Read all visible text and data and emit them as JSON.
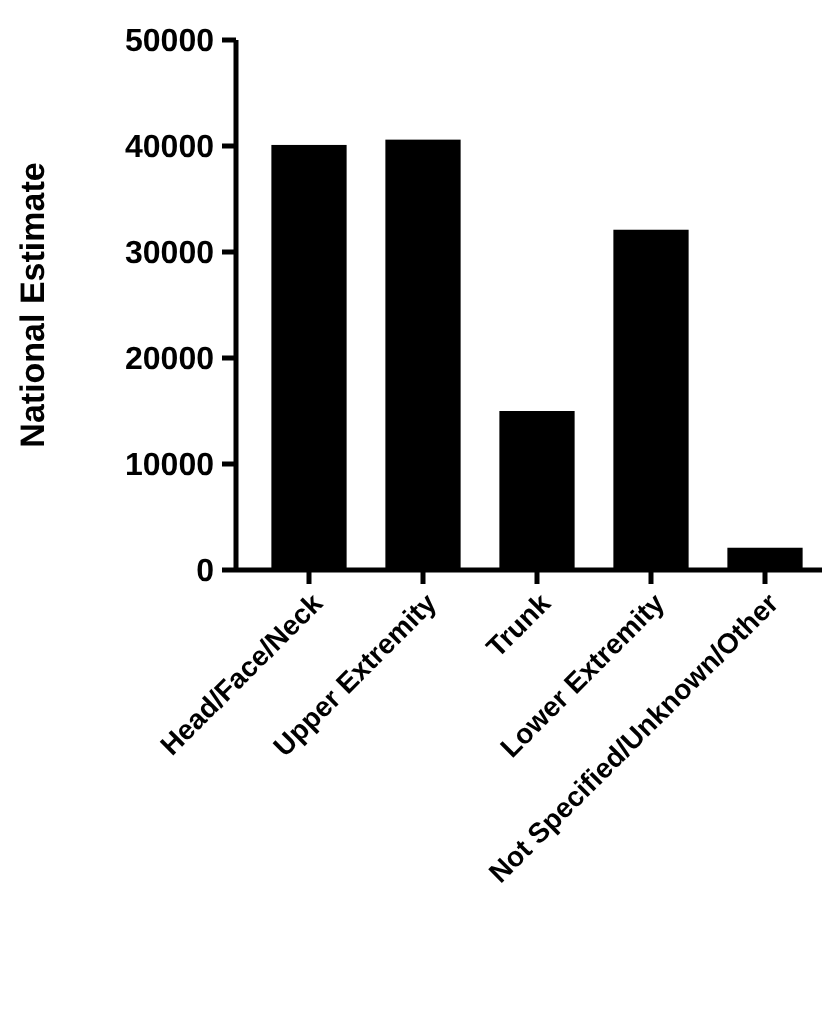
{
  "chart_data": {
    "type": "bar",
    "ylabel": "National Estimate",
    "categories": [
      "Head/Face/Neck",
      "Upper Extremity",
      "Trunk",
      "Lower Extremity",
      "Not Specified/Unknown/Other"
    ],
    "values": [
      40100,
      40600,
      15000,
      32100,
      2100
    ],
    "color": "#000000",
    "ylim": [
      0,
      50000
    ],
    "yticks": [
      0,
      10000,
      20000,
      30000,
      40000,
      50000
    ],
    "grid": false
  }
}
